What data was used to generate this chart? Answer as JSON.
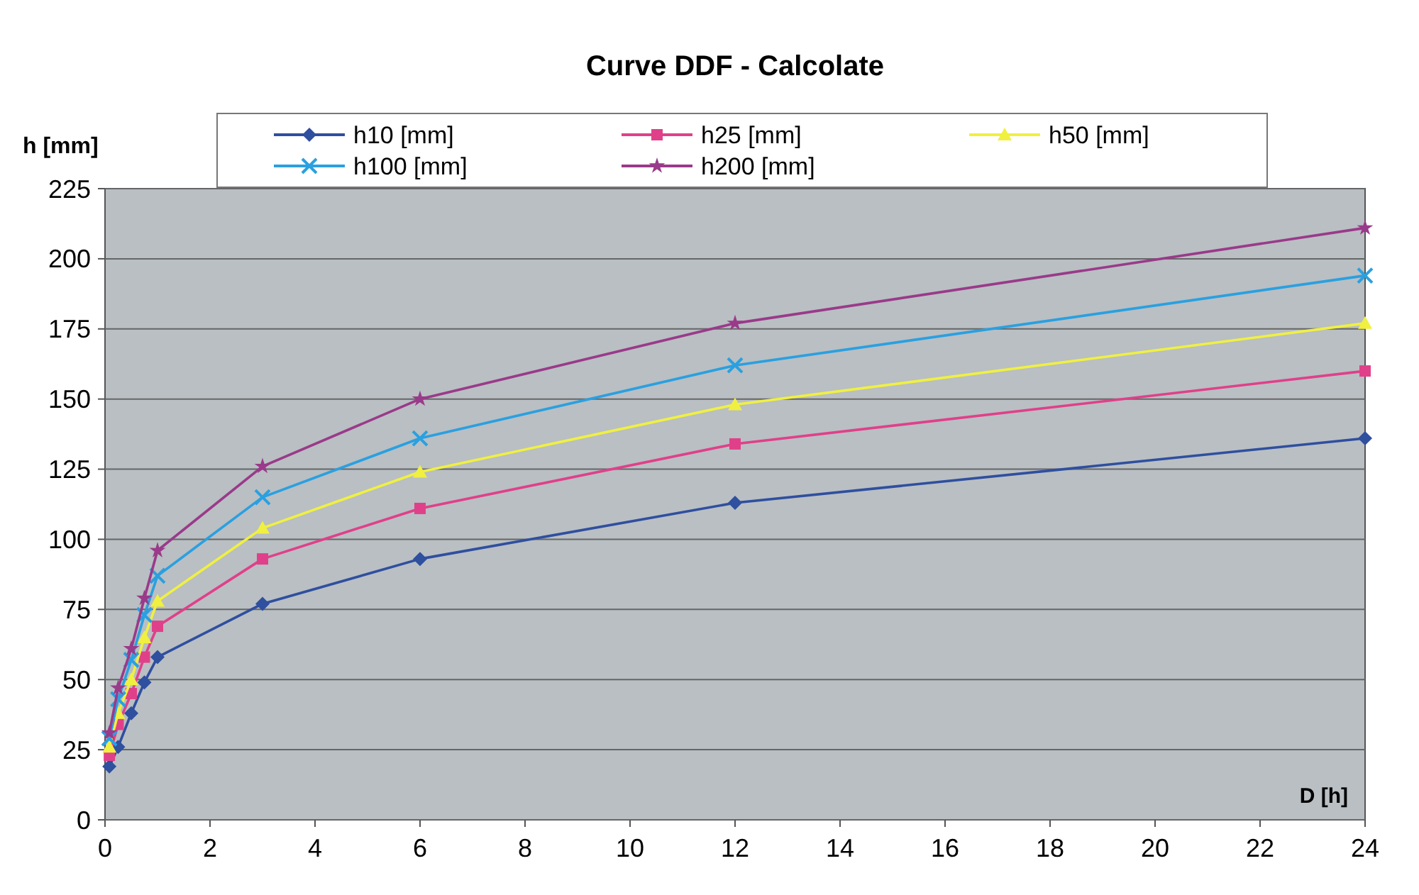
{
  "chart_data": {
    "type": "line",
    "title": "Curve DDF - Calcolate",
    "xlabel": "D [h]",
    "ylabel": "h [mm]",
    "x": [
      0.083,
      0.25,
      0.5,
      0.75,
      1,
      3,
      6,
      12,
      24
    ],
    "series": [
      {
        "name": "h10 [mm]",
        "color": "#2f4f9f",
        "marker": "diamond",
        "values": [
          19,
          26,
          38,
          49,
          58,
          77,
          93,
          113,
          136
        ]
      },
      {
        "name": "h25 [mm]",
        "color": "#e0408a",
        "marker": "square",
        "values": [
          23,
          34,
          45,
          58,
          69,
          93,
          111,
          134,
          160
        ]
      },
      {
        "name": "h50 [mm]",
        "color": "#f0f040",
        "marker": "triangle",
        "values": [
          26,
          38,
          50,
          65,
          78,
          104,
          124,
          148,
          177
        ]
      },
      {
        "name": "h100 [mm]",
        "color": "#2aa0e0",
        "marker": "cross",
        "values": [
          29,
          43,
          57,
          73,
          87,
          115,
          136,
          162,
          194
        ]
      },
      {
        "name": "h200 [mm]",
        "color": "#9a3a8a",
        "marker": "star",
        "values": [
          31,
          47,
          61,
          79,
          96,
          126,
          150,
          177,
          211
        ]
      }
    ],
    "xlim": [
      0,
      24
    ],
    "xticks": [
      0,
      2,
      4,
      6,
      8,
      10,
      12,
      14,
      16,
      18,
      20,
      22,
      24
    ],
    "ylim": [
      0,
      225
    ],
    "yticks": [
      0,
      25,
      50,
      75,
      100,
      125,
      150,
      175,
      200,
      225
    ],
    "grid": "y",
    "legend": "top",
    "line_style": "solid"
  }
}
